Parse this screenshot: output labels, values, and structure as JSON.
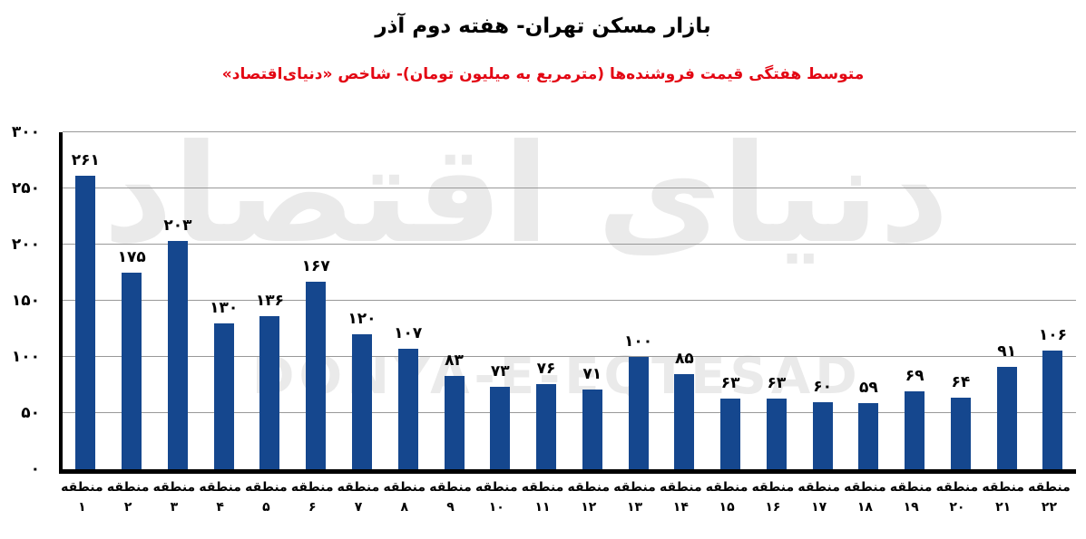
{
  "title": "بازار مسکن تهران- هفته دوم آذر",
  "subtitle": "متوسط هفتگی قیمت فروشنده‌ها (مترمربع به میلیون تومان)- شاخص «دنیای‌اقتصاد»",
  "watermark": {
    "fa": "دنیای اقتصاد",
    "en": "DONYA-E-EQTESAD"
  },
  "colors": {
    "bar": "#15478E",
    "subtitle": "#E30613",
    "gridline": "#999999",
    "title": "#000000",
    "watermark": "#EAEAEA",
    "axis": "#000000"
  },
  "chart_data": {
    "type": "bar",
    "title": "بازار مسکن تهران- هفته دوم آذر",
    "subtitle": "متوسط هفتگی قیمت فروشنده‌ها (مترمربع به میلیون تومان)- شاخص «دنیای‌اقتصاد»",
    "categories": [
      "منطقه ۱",
      "منطقه ۲",
      "منطقه ۳",
      "منطقه ۴",
      "منطقه ۵",
      "منطقه ۶",
      "منطقه ۷",
      "منطقه ۸",
      "منطقه ۹",
      "منطقه ۱۰",
      "منطقه ۱۱",
      "منطقه ۱۲",
      "منطقه ۱۳",
      "منطقه ۱۴",
      "منطقه ۱۵",
      "منطقه ۱۶",
      "منطقه ۱۷",
      "منطقه ۱۸",
      "منطقه ۱۹",
      "منطقه ۲۰",
      "منطقه ۲۱",
      "منطقه ۲۲"
    ],
    "category_word": "منطقه",
    "category_numbers_fa": [
      "۱",
      "۲",
      "۳",
      "۴",
      "۵",
      "۶",
      "۷",
      "۸",
      "۹",
      "۱۰",
      "۱۱",
      "۱۲",
      "۱۳",
      "۱۴",
      "۱۵",
      "۱۶",
      "۱۷",
      "۱۸",
      "۱۹",
      "۲۰",
      "۲۱",
      "۲۲"
    ],
    "values": [
      261,
      175,
      203,
      130,
      136,
      167,
      120,
      107,
      83,
      73,
      76,
      71,
      100,
      85,
      63,
      63,
      60,
      59,
      69,
      64,
      91,
      106
    ],
    "value_labels_fa": [
      "۲۶۱",
      "۱۷۵",
      "۲۰۳",
      "۱۳۰",
      "۱۳۶",
      "۱۶۷",
      "۱۲۰",
      "۱۰۷",
      "۸۳",
      "۷۳",
      "۷۶",
      "۷۱",
      "۱۰۰",
      "۸۵",
      "۶۳",
      "۶۳",
      "۶۰",
      "۵۹",
      "۶۹",
      "۶۴",
      "۹۱",
      "۱۰۶"
    ],
    "xlabel": "",
    "ylabel": "",
    "ylim": [
      0,
      300
    ],
    "yticks": [
      0,
      50,
      100,
      150,
      200,
      250,
      300
    ],
    "ytick_labels_fa": [
      "۰",
      "۵۰",
      "۱۰۰",
      "۱۵۰",
      "۲۰۰",
      "۲۵۰",
      "۳۰۰"
    ],
    "grid": true,
    "legend": false,
    "bar_color": "#15478E"
  }
}
